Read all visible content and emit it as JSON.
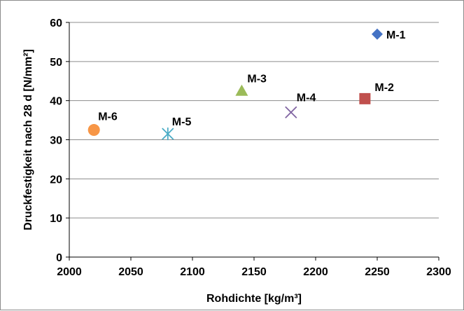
{
  "chart_data": {
    "type": "scatter",
    "title": "",
    "xlabel": "Rohdichte [kg/m³]",
    "ylabel": "Druckfestigkeit nach 28 d [N/mm²]",
    "xlim": [
      2000,
      2300
    ],
    "ylim": [
      0,
      60
    ],
    "x_ticks": [
      "2000",
      "2050",
      "2100",
      "2150",
      "2200",
      "2250",
      "2300"
    ],
    "y_ticks": [
      "0",
      "10",
      "20",
      "30",
      "40",
      "50",
      "60"
    ],
    "grid": "horizontal",
    "legend": "none",
    "points": [
      {
        "label": "M-1",
        "x": 2250,
        "y": 57,
        "marker": "diamond",
        "color": "#4472c4"
      },
      {
        "label": "M-2",
        "x": 2240,
        "y": 40.5,
        "marker": "square",
        "color": "#c0504d"
      },
      {
        "label": "M-3",
        "x": 2140,
        "y": 42.5,
        "marker": "triangle",
        "color": "#9bbb59"
      },
      {
        "label": "M-4",
        "x": 2180,
        "y": 37,
        "marker": "x",
        "color": "#8064a2"
      },
      {
        "label": "M-5",
        "x": 2080,
        "y": 31.5,
        "marker": "asterisk",
        "color": "#4bacc6"
      },
      {
        "label": "M-6",
        "x": 2020,
        "y": 32.5,
        "marker": "circle",
        "color": "#f79646"
      }
    ]
  }
}
